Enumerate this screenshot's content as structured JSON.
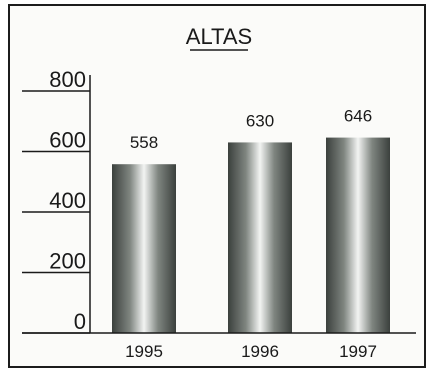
{
  "chart_data": {
    "type": "bar",
    "title": "ALTAS",
    "categories": [
      "1995",
      "1996",
      "1997"
    ],
    "values": [
      558,
      630,
      646
    ],
    "value_labels": [
      "558",
      "630",
      "646"
    ],
    "yticks": [
      0,
      200,
      400,
      600,
      800
    ],
    "ytick_labels": [
      "0",
      "200",
      "400",
      "600",
      "800"
    ],
    "ylim": [
      0,
      800
    ],
    "xlabel": "",
    "ylabel": "",
    "grid": false,
    "legend": "none",
    "bar_color": "#7f8580",
    "bar_highlight": "#f2f4f2",
    "bar_shadow": "#3b403d"
  }
}
